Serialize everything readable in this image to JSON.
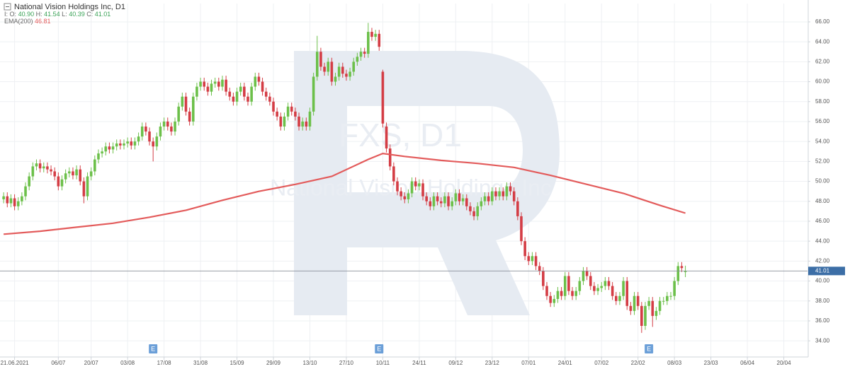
{
  "chart_data": {
    "type": "candlestick",
    "title": "National Vision Holdings Inc,  D1",
    "header": {
      "prefix": "I:",
      "labels": [
        "O:",
        "H:",
        "L:",
        "C:"
      ],
      "values": [
        40.9,
        41.54,
        40.39,
        41.01
      ],
      "value_labels": [
        "40.90",
        "41.54",
        "40.39",
        "41.01"
      ]
    },
    "watermark": [
      "FXS, D1",
      "National Vision Holdings Inc"
    ],
    "up_color": "#6cc04a",
    "down_color": "#d43d45",
    "open": [
      48.2,
      48.5,
      47.8,
      48.3,
      47.5,
      48.0,
      48.5,
      49.5,
      50.5,
      51.5,
      51.8,
      51.3,
      51.5,
      51.2,
      51.0,
      50.5,
      49.5,
      50.2,
      50.8,
      51.0,
      50.6,
      51.2,
      50.0,
      48.5,
      50.5,
      51.0,
      52.2,
      52.8,
      53.0,
      53.5,
      53.2,
      53.5,
      53.8,
      53.6,
      53.8,
      54.0,
      53.6,
      54.0,
      54.5,
      55.5,
      55.0,
      54.0,
      53.5,
      54.5,
      55.5,
      56.0,
      55.5,
      55.0,
      56.0,
      57.5,
      58.5,
      57.0,
      56.0,
      58.5,
      59.5,
      60.0,
      59.5,
      59.0,
      59.8,
      60.0,
      59.5,
      60.2,
      59.0,
      58.5,
      58.0,
      59.0,
      59.5,
      58.5,
      58.0,
      59.5,
      60.5,
      60.0,
      59.0,
      58.5,
      58.0,
      57.0,
      56.5,
      55.5,
      56.5,
      57.5,
      57.0,
      56.5,
      55.5,
      56.0,
      55.5,
      57.0,
      60.5,
      63.0,
      61.5,
      61.0,
      62.0,
      60.0,
      60.5,
      61.5,
      60.8,
      60.5,
      61.0,
      62.0,
      62.5,
      63.0,
      62.8,
      65.0,
      64.5,
      64.8,
      61.0,
      55.5,
      53.3,
      51.5,
      50.0,
      49.0,
      48.5,
      48.2,
      48.8,
      50.0,
      49.5,
      49.8,
      48.5,
      48.0,
      47.5,
      48.5,
      48.0,
      47.8,
      48.5,
      47.5,
      48.0,
      48.8,
      48.0,
      48.3,
      47.5,
      47.0,
      46.5,
      47.5,
      48.0,
      48.5,
      48.0,
      49.0,
      48.5,
      49.0,
      48.5,
      49.5,
      49.0,
      48.0,
      46.5,
      44.0,
      42.5,
      42.0,
      42.5,
      41.5,
      41.0,
      39.5,
      38.5,
      37.8,
      38.2,
      39.0,
      38.5,
      40.5,
      39.0,
      38.5,
      39.0,
      40.0,
      41.0,
      40.5,
      39.5,
      39.0,
      39.3,
      39.5,
      40.0,
      39.5,
      38.5,
      38.0,
      38.5,
      40.0,
      37.5,
      37.0,
      38.5,
      37.5,
      35.5,
      37.5,
      38.0,
      36.5,
      37.0,
      38.0,
      38.0,
      38.5,
      38.5,
      40.0,
      41.5,
      40.9
    ],
    "high": [
      48.9,
      48.9,
      48.7,
      48.7,
      48.4,
      48.9,
      49.9,
      50.9,
      51.9,
      52.2,
      52.2,
      51.9,
      51.9,
      51.6,
      51.4,
      50.9,
      50.6,
      51.2,
      51.4,
      51.4,
      51.6,
      51.6,
      50.4,
      50.9,
      51.4,
      52.6,
      53.2,
      53.4,
      53.9,
      53.9,
      53.9,
      54.2,
      54.2,
      54.2,
      54.4,
      54.4,
      54.4,
      54.9,
      55.9,
      55.9,
      55.4,
      54.4,
      54.9,
      55.9,
      56.4,
      56.4,
      55.9,
      56.4,
      57.9,
      58.9,
      58.9,
      57.4,
      58.9,
      59.9,
      60.4,
      60.4,
      59.9,
      60.2,
      60.4,
      60.4,
      60.6,
      60.6,
      59.4,
      58.9,
      59.4,
      59.9,
      59.9,
      58.9,
      59.9,
      60.9,
      60.9,
      60.4,
      59.4,
      58.9,
      58.4,
      57.4,
      56.9,
      56.9,
      57.9,
      57.9,
      57.4,
      56.9,
      56.4,
      56.4,
      57.4,
      60.9,
      64.6,
      63.4,
      61.9,
      62.4,
      62.4,
      60.9,
      61.9,
      61.9,
      61.2,
      61.4,
      62.4,
      62.9,
      63.4,
      63.4,
      65.9,
      65.4,
      65.2,
      65.2,
      61.2,
      55.9,
      53.7,
      51.9,
      50.4,
      49.4,
      48.9,
      49.2,
      50.4,
      50.4,
      50.2,
      50.2,
      48.9,
      48.4,
      48.9,
      48.9,
      48.4,
      48.9,
      48.9,
      48.4,
      49.2,
      49.2,
      48.7,
      48.7,
      47.9,
      47.4,
      47.9,
      48.4,
      48.9,
      48.9,
      49.4,
      49.4,
      49.4,
      49.4,
      49.9,
      49.9,
      49.4,
      48.4,
      46.9,
      44.4,
      42.9,
      42.9,
      42.9,
      41.9,
      41.4,
      39.9,
      38.9,
      38.6,
      39.4,
      39.4,
      40.9,
      40.9,
      39.4,
      39.4,
      40.4,
      41.4,
      41.4,
      40.9,
      39.9,
      39.7,
      39.9,
      40.4,
      40.4,
      39.9,
      38.9,
      38.9,
      40.4,
      40.4,
      37.9,
      38.9,
      38.9,
      37.9,
      37.9,
      38.4,
      38.4,
      37.4,
      38.4,
      38.4,
      38.9,
      38.9,
      40.4,
      41.9,
      41.9,
      41.54
    ],
    "low": [
      47.8,
      47.4,
      47.4,
      47.1,
      47.1,
      47.6,
      48.1,
      49.1,
      50.1,
      51.1,
      50.9,
      50.9,
      50.8,
      50.6,
      50.1,
      49.1,
      49.1,
      49.8,
      50.4,
      50.2,
      50.2,
      49.6,
      47.8,
      48.1,
      50.1,
      50.6,
      51.8,
      52.4,
      52.6,
      52.8,
      52.8,
      53.1,
      53.2,
      53.2,
      53.4,
      53.2,
      53.2,
      53.6,
      54.1,
      54.6,
      53.6,
      52.0,
      53.1,
      54.1,
      55.1,
      55.1,
      54.6,
      54.6,
      55.6,
      57.1,
      56.6,
      55.6,
      55.6,
      58.1,
      59.1,
      59.1,
      58.6,
      58.6,
      59.4,
      59.1,
      59.1,
      58.6,
      58.1,
      57.6,
      57.6,
      58.6,
      58.1,
      57.6,
      57.6,
      59.1,
      59.6,
      58.6,
      58.1,
      57.6,
      56.6,
      56.1,
      55.1,
      55.1,
      56.1,
      56.6,
      56.1,
      55.1,
      55.1,
      55.1,
      55.1,
      56.6,
      60.1,
      61.1,
      60.6,
      60.6,
      59.6,
      59.6,
      60.1,
      60.4,
      60.1,
      60.1,
      60.6,
      61.6,
      62.1,
      62.4,
      62.4,
      64.1,
      64.1,
      63.1,
      55.4,
      52.9,
      51.1,
      49.6,
      48.6,
      48.1,
      47.8,
      47.8,
      48.4,
      49.1,
      49.1,
      48.1,
      47.6,
      47.1,
      47.1,
      47.6,
      47.4,
      47.4,
      47.1,
      47.1,
      47.6,
      47.6,
      47.6,
      47.1,
      46.6,
      46.1,
      46.1,
      47.1,
      47.6,
      47.6,
      47.6,
      48.1,
      48.1,
      48.1,
      48.1,
      48.6,
      47.6,
      46.1,
      43.6,
      42.1,
      41.6,
      41.6,
      41.1,
      40.6,
      39.1,
      38.1,
      37.4,
      37.4,
      37.8,
      38.1,
      38.1,
      38.6,
      38.1,
      38.1,
      38.6,
      39.6,
      40.1,
      39.1,
      38.6,
      38.6,
      38.9,
      39.1,
      39.1,
      38.1,
      37.6,
      37.6,
      38.1,
      37.1,
      36.6,
      36.6,
      37.1,
      34.8,
      35.1,
      37.1,
      35.4,
      36.1,
      36.6,
      37.6,
      37.6,
      38.1,
      38.1,
      39.6,
      40.9,
      40.39
    ],
    "close": [
      48.5,
      47.8,
      48.3,
      47.5,
      48.0,
      48.5,
      49.5,
      50.5,
      51.5,
      51.8,
      51.3,
      51.5,
      51.2,
      51.0,
      50.5,
      49.5,
      50.2,
      50.8,
      51.0,
      50.6,
      51.2,
      50.0,
      48.5,
      50.5,
      51.0,
      52.2,
      52.8,
      53.0,
      53.5,
      53.2,
      53.5,
      53.8,
      53.6,
      53.8,
      54.0,
      53.6,
      54.0,
      54.5,
      55.5,
      55.0,
      54.0,
      53.5,
      54.5,
      55.5,
      56.0,
      55.5,
      55.0,
      56.0,
      57.5,
      58.5,
      57.0,
      56.0,
      58.5,
      59.5,
      60.0,
      59.5,
      59.0,
      59.8,
      60.0,
      59.5,
      60.2,
      59.0,
      58.5,
      58.0,
      59.0,
      59.5,
      58.5,
      58.0,
      59.5,
      60.5,
      60.0,
      59.0,
      58.5,
      58.0,
      57.0,
      56.5,
      55.5,
      56.5,
      57.5,
      57.0,
      56.5,
      55.5,
      56.0,
      55.5,
      57.0,
      60.5,
      63.0,
      61.5,
      61.0,
      62.0,
      60.0,
      60.5,
      61.5,
      60.8,
      60.5,
      61.0,
      62.0,
      62.5,
      63.0,
      62.8,
      65.0,
      64.5,
      64.8,
      63.5,
      55.8,
      53.3,
      51.5,
      50.0,
      49.0,
      48.5,
      48.2,
      48.8,
      50.0,
      49.5,
      49.8,
      48.5,
      48.0,
      47.5,
      48.5,
      48.0,
      47.8,
      48.5,
      47.5,
      48.0,
      48.8,
      48.0,
      48.3,
      47.5,
      47.0,
      46.5,
      47.5,
      48.0,
      48.5,
      48.0,
      49.0,
      48.5,
      49.0,
      48.5,
      49.5,
      49.0,
      48.0,
      46.5,
      44.0,
      42.5,
      42.0,
      42.5,
      41.5,
      41.0,
      39.5,
      38.5,
      37.8,
      38.2,
      39.0,
      38.5,
      40.5,
      39.0,
      38.5,
      39.0,
      40.0,
      41.0,
      40.5,
      39.5,
      39.0,
      39.3,
      39.5,
      40.0,
      39.5,
      38.5,
      38.0,
      38.5,
      40.0,
      37.5,
      37.0,
      38.5,
      37.5,
      35.5,
      37.5,
      38.0,
      36.5,
      37.0,
      38.0,
      38.0,
      38.5,
      38.5,
      40.0,
      41.5,
      41.3,
      41.01
    ],
    "ema": {
      "name": "EMA(200)",
      "color": "#e35b5b",
      "x": [
        0,
        10,
        20,
        30,
        40,
        50,
        60,
        70,
        80,
        90,
        100,
        104,
        110,
        120,
        130,
        140,
        150,
        160,
        170,
        180,
        187
      ],
      "values": [
        44.7,
        45.0,
        45.4,
        45.8,
        46.4,
        47.1,
        48.1,
        49.0,
        49.7,
        50.5,
        52.2,
        52.8,
        52.5,
        52.1,
        51.8,
        51.4,
        50.6,
        49.7,
        48.8,
        47.6,
        46.81
      ]
    },
    "last_price": {
      "value": 41.01,
      "label": "41.01"
    },
    "events": {
      "x": [
        41,
        103,
        177
      ],
      "label": "E"
    },
    "xlim": [
      -1,
      220.5
    ],
    "xticks": [
      {
        "value": 3,
        "label": "21.06.2021"
      },
      {
        "value": 15,
        "label": "06/07"
      },
      {
        "value": 24,
        "label": "20/07"
      },
      {
        "value": 34,
        "label": "03/08"
      },
      {
        "value": 44,
        "label": "17/08"
      },
      {
        "value": 54,
        "label": "31/08"
      },
      {
        "value": 64,
        "label": "15/09"
      },
      {
        "value": 74,
        "label": "29/09"
      },
      {
        "value": 84,
        "label": "13/10"
      },
      {
        "value": 94,
        "label": "27/10"
      },
      {
        "value": 104,
        "label": "10/11"
      },
      {
        "value": 114,
        "label": "24/11"
      },
      {
        "value": 124,
        "label": "09/12"
      },
      {
        "value": 134,
        "label": "23/12"
      },
      {
        "value": 144,
        "label": "07/01"
      },
      {
        "value": 154,
        "label": "24/01"
      },
      {
        "value": 164,
        "label": "07/02"
      },
      {
        "value": 174,
        "label": "22/02"
      },
      {
        "value": 184,
        "label": "08/03"
      },
      {
        "value": 194,
        "label": "23/03"
      },
      {
        "value": 204,
        "label": "06/04"
      },
      {
        "value": 214,
        "label": "20/04"
      }
    ],
    "ylim": [
      32.38,
      67.84
    ],
    "yticks": [
      {
        "value": 34,
        "label": "34.00"
      },
      {
        "value": 36,
        "label": "36.00"
      },
      {
        "value": 38,
        "label": "38.00"
      },
      {
        "value": 40,
        "label": "40.00"
      },
      {
        "value": 42,
        "label": "42.00"
      },
      {
        "value": 44,
        "label": "44.00"
      },
      {
        "value": 46,
        "label": "46.00"
      },
      {
        "value": 48,
        "label": "48.00"
      },
      {
        "value": 50,
        "label": "50.00"
      },
      {
        "value": 52,
        "label": "52.00"
      },
      {
        "value": 54,
        "label": "54.00"
      },
      {
        "value": 56,
        "label": "56.00"
      },
      {
        "value": 58,
        "label": "58.00"
      },
      {
        "value": 60,
        "label": "60.00"
      },
      {
        "value": 62,
        "label": "62.00"
      },
      {
        "value": 64,
        "label": "64.00"
      },
      {
        "value": 66,
        "label": "66.00"
      }
    ],
    "grid": true
  }
}
